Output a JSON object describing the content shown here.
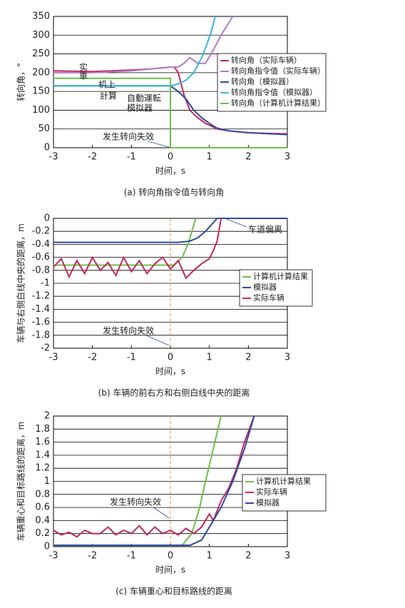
{
  "chart_data": [
    {
      "type": "line",
      "title": "(a) 转向角指令值与转向角",
      "x_label": "时间，s",
      "y_label": "转向角，°",
      "xlim": [
        -3,
        3
      ],
      "xticks": [
        -3,
        -2,
        -1,
        0,
        1,
        2,
        3
      ],
      "ylim": [
        0,
        350
      ],
      "yticks": [
        0,
        50,
        100,
        150,
        200,
        250,
        300,
        350
      ],
      "grid": true,
      "series": [
        {
          "name": "转向角（实际车辆）",
          "color": "#c2275e",
          "x": [
            -3,
            -2,
            -1,
            -0.5,
            0,
            0.1,
            0.2,
            0.35,
            0.5,
            0.7,
            0.9,
            1.2,
            1.5,
            2,
            2.5,
            3
          ],
          "values": [
            205,
            203,
            207,
            210,
            215,
            215,
            200,
            140,
            100,
            80,
            65,
            50,
            45,
            40,
            38,
            37
          ]
        },
        {
          "name": "转向角指令值（实际车辆）",
          "color": "#b07cc2",
          "x": [
            -3,
            -2,
            -1,
            -0.5,
            0,
            0.2,
            0.35,
            0.5,
            0.7,
            0.9,
            1.1,
            1.3,
            1.6
          ],
          "values": [
            200,
            200,
            205,
            210,
            215,
            215,
            225,
            240,
            225,
            225,
            260,
            300,
            350
          ]
        },
        {
          "name": "转向角（模拟器）",
          "color": "#2e4a9e",
          "x": [
            -3,
            0,
            0.2,
            0.4,
            0.6,
            0.8,
            1.0,
            1.2,
            1.5,
            2,
            3
          ],
          "values": [
            165,
            165,
            150,
            130,
            100,
            80,
            65,
            52,
            45,
            40,
            35
          ]
        },
        {
          "name": "转向角指令值（模拟器）",
          "color": "#3cb4e0",
          "x": [
            -3,
            0,
            0.2,
            0.4,
            0.6,
            0.8,
            0.95,
            1.05,
            1.15
          ],
          "values": [
            165,
            165,
            170,
            180,
            200,
            240,
            280,
            310,
            350
          ]
        },
        {
          "name": "转向角（计算机计算结果）",
          "color": "#6cbf4a",
          "x": [
            -3,
            0,
            0,
            3
          ],
          "values": [
            185,
            185,
            0,
            0
          ]
        }
      ],
      "annotations": [
        {
          "text": "实車",
          "color": "#c2275e"
        },
        {
          "text": "机上",
          "color": "#6cbf4a"
        },
        {
          "text": "計算",
          "color": "#6cbf4a"
        },
        {
          "text": "自動運転",
          "color": "#2e4a9e"
        },
        {
          "text": "模拟器",
          "color": "#2e4a9e"
        },
        {
          "text": "发生转向失效",
          "color": "#222"
        }
      ]
    },
    {
      "type": "line",
      "title": "(b) 车辆的前右方和右侧白线中央的距离",
      "x_label": "时间，s",
      "y_label": "车辆与右侧白线中央的距离，m",
      "xlim": [
        -3,
        3
      ],
      "xticks": [
        -3,
        -2,
        -1,
        0,
        1,
        2,
        3
      ],
      "ylim": [
        -2,
        0
      ],
      "yticks": [
        -2,
        -1.8,
        -1.6,
        -1.4,
        -1.2,
        -1,
        -0.8,
        -0.6,
        -0.4,
        -0.2,
        0
      ],
      "grid": true,
      "vline": 0,
      "series": [
        {
          "name": "计算机计算结果",
          "color": "#6cbf4a",
          "x": [
            -3,
            0.1,
            0.3,
            0.45,
            0.55,
            0.65
          ],
          "values": [
            -0.72,
            -0.72,
            -0.6,
            -0.4,
            -0.2,
            0
          ]
        },
        {
          "name": "模拟器",
          "color": "#2e4a9e",
          "x": [
            -3,
            0.2,
            0.5,
            0.7,
            0.9,
            1.05,
            1.2,
            3
          ],
          "values": [
            -0.37,
            -0.37,
            -0.35,
            -0.3,
            -0.2,
            -0.1,
            0,
            0
          ]
        },
        {
          "name": "实际车辆",
          "color": "#c2275e",
          "x": [
            -3,
            -2.8,
            -2.6,
            -2.4,
            -2.2,
            -2,
            -1.8,
            -1.6,
            -1.4,
            -1.2,
            -1,
            -0.8,
            -0.6,
            -0.4,
            -0.2,
            0,
            0.2,
            0.4,
            0.6,
            0.8,
            1,
            1.1,
            1.2,
            1.3
          ],
          "values": [
            -0.75,
            -0.62,
            -0.9,
            -0.65,
            -0.85,
            -0.6,
            -0.8,
            -0.68,
            -0.88,
            -0.6,
            -0.82,
            -0.65,
            -0.85,
            -0.7,
            -0.6,
            -0.78,
            -0.65,
            -0.92,
            -0.8,
            -0.7,
            -0.62,
            -0.5,
            -0.35,
            0
          ]
        }
      ],
      "annotations": [
        {
          "text": "车道偏离",
          "color": "#222"
        },
        {
          "text": "发生转向失效",
          "color": "#222"
        }
      ]
    },
    {
      "type": "line",
      "title": "(c) 车辆重心和目标路线的距离",
      "x_label": "时间，s",
      "y_label": "车辆重心和目标路线的距离，m",
      "xlim": [
        -3,
        3
      ],
      "xticks": [
        -3,
        -2,
        -1,
        0,
        1,
        2,
        3
      ],
      "ylim": [
        0,
        2
      ],
      "yticks": [
        0,
        0.2,
        0.4,
        0.6,
        0.8,
        1,
        1.2,
        1.4,
        1.6,
        1.8,
        2
      ],
      "grid": true,
      "vline": 0,
      "series": [
        {
          "name": "计算机计算结果",
          "color": "#6cbf4a",
          "x": [
            -3,
            0.3,
            0.55,
            0.75,
            0.9,
            1.1,
            1.3
          ],
          "values": [
            0.02,
            0.02,
            0.2,
            0.6,
            1,
            1.5,
            2
          ]
        },
        {
          "name": "实际车辆",
          "color": "#c2275e",
          "x": [
            -3,
            -2.8,
            -2.6,
            -2.4,
            -2.2,
            -2,
            -1.8,
            -1.6,
            -1.4,
            -1.2,
            -1,
            -0.8,
            -0.6,
            -0.4,
            -0.2,
            0,
            0.2,
            0.4,
            0.6,
            0.8,
            1,
            1.1,
            1.3,
            1.5,
            1.7,
            1.9,
            2.15
          ],
          "values": [
            0.25,
            0.18,
            0.22,
            0.15,
            0.25,
            0.2,
            0.2,
            0.3,
            0.18,
            0.25,
            0.2,
            0.32,
            0.18,
            0.3,
            0.2,
            0.25,
            0.18,
            0.28,
            0.2,
            0.3,
            0.5,
            0.4,
            0.7,
            0.9,
            1.2,
            1.6,
            2
          ]
        },
        {
          "name": "模拟器",
          "color": "#2e4a9e",
          "x": [
            -3,
            0.5,
            0.8,
            1,
            1.3,
            1.6,
            1.9,
            2.15
          ],
          "values": [
            0.02,
            0.02,
            0.1,
            0.3,
            0.6,
            1,
            1.5,
            2
          ]
        }
      ],
      "annotations": [
        {
          "text": "发生转向失效",
          "color": "#222"
        }
      ]
    }
  ]
}
